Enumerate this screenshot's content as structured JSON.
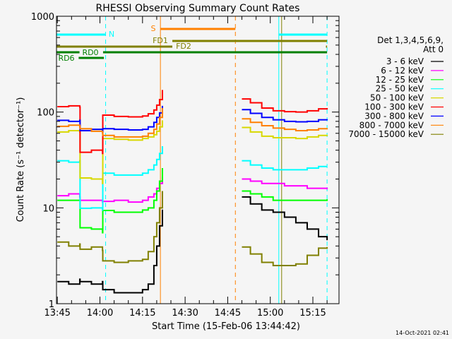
{
  "chart_data": {
    "type": "line",
    "title": "RHESSI Observing Summary Count Rates",
    "xlabel": "Start Time (15-Feb-06 13:44:42)",
    "ylabel": "Count Rate (s⁻¹ detector⁻¹)",
    "y_scale": "log",
    "ylim": [
      1,
      1000
    ],
    "xlim_minutes_after_1345": [
      -0.3,
      99.2
    ],
    "x_ticks": [
      {
        "t": 0,
        "label": "13:45"
      },
      {
        "t": 15,
        "label": "14:00"
      },
      {
        "t": 30,
        "label": "14:15"
      },
      {
        "t": 45,
        "label": "14:30"
      },
      {
        "t": 60,
        "label": "14:45"
      },
      {
        "t": 75,
        "label": "15:00"
      },
      {
        "t": 90,
        "label": "15:15"
      }
    ],
    "y_ticks": [
      {
        "v": 1,
        "label": "1"
      },
      {
        "v": 10,
        "label": "10"
      },
      {
        "v": 100,
        "label": "100"
      },
      {
        "v": 1000,
        "label": "1000"
      }
    ],
    "legend": {
      "placement": "right",
      "header1": "Det 1,3,4,5,6,9,",
      "header2": "Att 0"
    },
    "x_minutes": [
      0,
      4,
      7.9,
      8,
      12,
      15.9,
      16,
      20,
      25,
      30,
      32,
      34,
      35,
      36,
      37,
      null,
      65,
      68,
      72,
      76,
      80,
      84,
      88,
      92,
      95
    ],
    "series": [
      {
        "name": "3 - 6 keV",
        "color": "#000000",
        "values": [
          1.7,
          1.6,
          1.8,
          1.7,
          1.6,
          1.7,
          1.4,
          1.3,
          1.3,
          1.4,
          1.6,
          2.5,
          4,
          6.5,
          9.6,
          null,
          13,
          11,
          9.5,
          9,
          8,
          7,
          6,
          5,
          4.6
        ]
      },
      {
        "name": "6 - 12 keV",
        "color": "#ff00ff",
        "values": [
          13.4,
          14,
          13,
          12,
          12,
          11.5,
          11.7,
          12,
          11.5,
          12,
          13,
          14,
          16,
          18,
          21,
          null,
          20,
          19,
          18,
          18,
          17,
          17,
          16,
          16,
          15.6
        ]
      },
      {
        "name": "12 - 25 keV",
        "color": "#00ff00",
        "values": [
          12,
          12,
          12,
          6.2,
          6,
          5.5,
          9.4,
          9,
          9,
          9.5,
          10,
          12,
          15,
          19,
          26,
          null,
          15,
          14,
          13,
          12,
          12,
          12,
          12,
          12,
          12.3
        ]
      },
      {
        "name": "25 - 50 keV",
        "color": "#00ffff",
        "values": [
          31,
          30,
          31,
          9.9,
          10,
          9.5,
          23,
          22,
          22,
          23,
          25,
          28,
          32,
          37,
          44,
          null,
          31,
          28,
          26,
          25,
          25,
          25,
          26,
          27,
          27
        ]
      },
      {
        "name": "50 - 100 keV",
        "color": "#d8d800",
        "values": [
          62,
          64,
          62,
          20.5,
          20,
          18,
          53,
          52,
          51,
          53,
          55,
          58,
          63,
          70,
          82,
          null,
          69,
          62,
          56,
          54,
          54,
          53,
          55,
          57,
          58
        ]
      },
      {
        "name": "100 - 300 keV",
        "color": "#ff0000",
        "values": [
          114,
          116,
          113,
          38,
          40,
          37,
          93,
          90,
          89,
          91,
          96,
          105,
          118,
          135,
          170,
          null,
          137,
          125,
          110,
          103,
          101,
          100,
          103,
          108,
          110
        ]
      },
      {
        "name": "300 - 800 keV",
        "color": "#0000ff",
        "values": [
          82,
          80,
          82,
          64,
          66,
          63,
          67,
          66,
          65,
          66,
          70,
          78,
          88,
          98,
          116,
          null,
          106,
          97,
          88,
          83,
          80,
          79,
          80,
          83,
          82
        ]
      },
      {
        "name": "800 - 7000 keV",
        "color": "#ff8000",
        "values": [
          71,
          73,
          70,
          67,
          63,
          60,
          57,
          55,
          55,
          56,
          60,
          66,
          75,
          88,
          110,
          null,
          85,
          78,
          72,
          68,
          66,
          64,
          65,
          67,
          68
        ]
      },
      {
        "name": "7000 - 15000 keV",
        "color": "#808000",
        "values": [
          4.4,
          4,
          4.2,
          3.7,
          3.9,
          3.6,
          2.8,
          2.7,
          2.8,
          2.9,
          3.5,
          5,
          7,
          10,
          15,
          null,
          3.9,
          3.3,
          2.7,
          2.5,
          2.5,
          2.6,
          3.2,
          3.8,
          3.9
        ]
      }
    ],
    "flag_bars": [
      {
        "label": "S",
        "color": "#ff8000",
        "row": 0,
        "segments": [
          [
            36.3,
            62.7
          ]
        ]
      },
      {
        "label": "N",
        "color": "#00ffff",
        "row": 1,
        "segments": [
          [
            -0.3,
            17
          ],
          [
            78,
            95
          ]
        ]
      },
      {
        "label": "FD1",
        "color": "#808000",
        "row": 2,
        "segments": [
          [
            40.5,
            95
          ]
        ]
      },
      {
        "label": "FD2",
        "color": "#808000",
        "row": 3,
        "segments": [
          [
            -0.3,
            40.5
          ],
          [
            94.6,
            95
          ]
        ]
      },
      {
        "label": "RD0",
        "color": "#008000",
        "row": 4,
        "segments": [
          [
            -0.3,
            7.8
          ],
          [
            16.1,
            95
          ]
        ]
      },
      {
        "label": "RD6",
        "color": "#008000",
        "row": 5,
        "segments": [
          [
            7.5,
            16.4
          ]
        ]
      }
    ],
    "markers": [
      {
        "t": -0.3,
        "color": "#00ffff",
        "dashed": false
      },
      {
        "t": 17,
        "color": "#00ffff",
        "dashed": true
      },
      {
        "t": 36.3,
        "color": "#ff8000",
        "dashed": false
      },
      {
        "t": 62.7,
        "color": "#ff8000",
        "dashed": true
      },
      {
        "t": 78,
        "color": "#00ffff",
        "dashed": false
      },
      {
        "t": 79,
        "color": "#808000",
        "dashed": false
      },
      {
        "t": 95,
        "color": "#00ffff",
        "dashed": true
      }
    ]
  },
  "footer": {
    "timestamp": "14-Oct-2021 02:41"
  }
}
